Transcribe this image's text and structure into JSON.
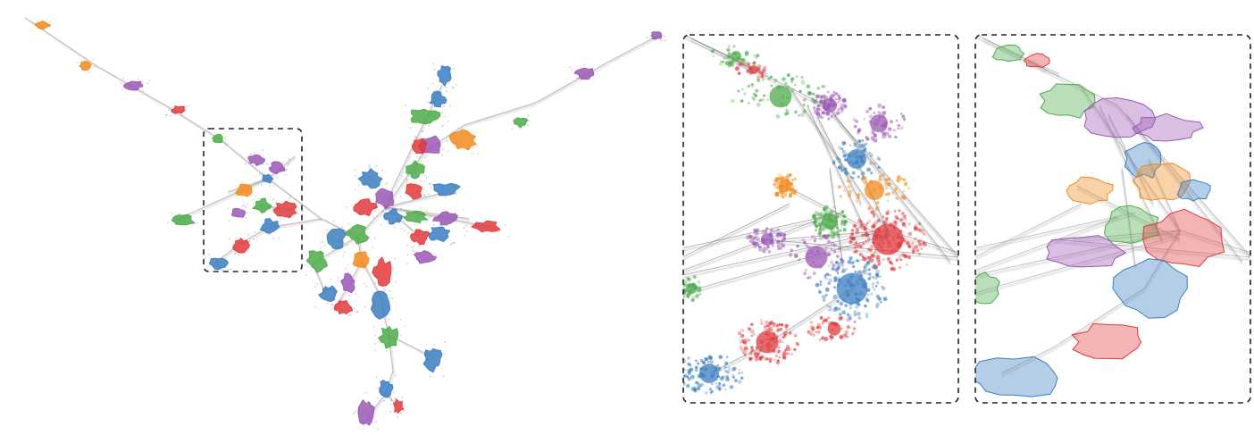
{
  "colors": {
    "blue": "#3b7dc0",
    "orange": "#f28a1d",
    "green": "#4daa4a",
    "red": "#e0393c",
    "purple": "#9a58b4",
    "edge": "#8a8a8a",
    "frame": "#222222"
  },
  "figure": {
    "panels": [
      "overview-graph",
      "zoom-scatter",
      "zoom-contour"
    ],
    "zoom_box_style": "dashed",
    "text_labels": []
  }
}
